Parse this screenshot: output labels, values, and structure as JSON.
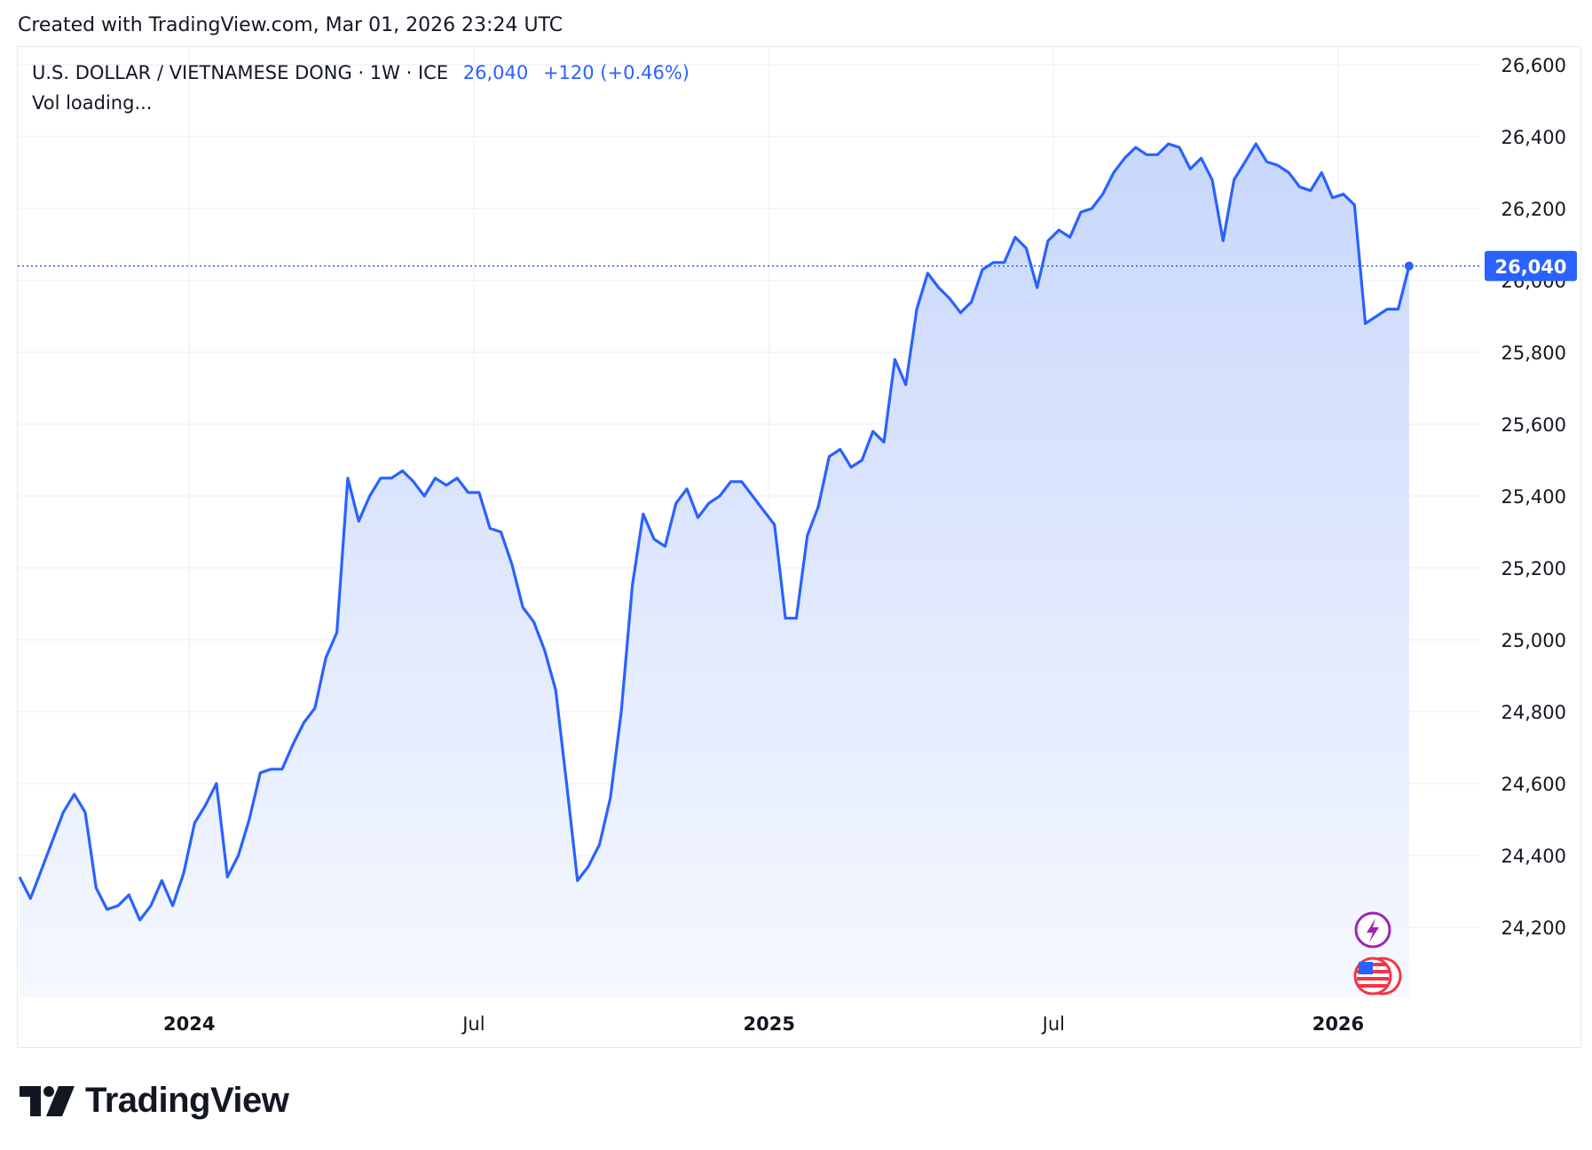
{
  "header": {
    "created_text": "Created with TradingView.com, Mar 01, 2026 23:24 UTC"
  },
  "legend": {
    "symbol": "U.S. DOLLAR / VIETNAMESE DONG · 1W · ICE",
    "price": "26,040",
    "change": "+120 (+0.46%)",
    "volume": "Vol loading..."
  },
  "brand": {
    "name": "TradingView"
  },
  "colors": {
    "line": "#2962ff",
    "fill_top": "#c9d7fb",
    "fill_bottom": "#f5f8ff",
    "grid": "#f0f3fa",
    "text": "#131722"
  },
  "icons": [
    "lightning-icon",
    "us-flag-icon"
  ],
  "chart_data": {
    "type": "area",
    "title": "U.S. DOLLAR / VIETNAMESE DONG · 1W · ICE",
    "xlabel": "",
    "ylabel": "",
    "ylim": [
      24000,
      26620
    ],
    "y_ticks": [
      24200,
      24400,
      24600,
      24800,
      25000,
      25200,
      25400,
      25600,
      25800,
      26000,
      26200,
      26400,
      26600
    ],
    "y_tick_labels": [
      "24,200",
      "24,400",
      "24,600",
      "24,800",
      "25,000",
      "25,200",
      "25,400",
      "25,600",
      "25,800",
      "26,000",
      "26,200",
      "26,400",
      "26,600"
    ],
    "x_ticks": [
      {
        "label": "2024",
        "index": 16,
        "bold": true
      },
      {
        "label": "Jul",
        "index": 42,
        "bold": false
      },
      {
        "label": "2025",
        "index": 69,
        "bold": true
      },
      {
        "label": "Jul",
        "index": 95,
        "bold": false
      },
      {
        "label": "2026",
        "index": 121,
        "bold": true
      }
    ],
    "last_value": 26040,
    "last_value_label": "26,040",
    "grid": true,
    "series": [
      {
        "values": [
          24340,
          24280,
          24360,
          24440,
          24520,
          24570,
          24520,
          24310,
          24250,
          24260,
          24290,
          24220,
          24260,
          24330,
          24260,
          24350,
          24490,
          24540,
          24600,
          24340,
          24400,
          24500,
          24630,
          24640,
          24640,
          24710,
          24770,
          24810,
          24950,
          25020,
          25450,
          25330,
          25400,
          25450,
          25450,
          25470,
          25440,
          25400,
          25450,
          25430,
          25450,
          25410,
          25410,
          25310,
          25300,
          25210,
          25090,
          25050,
          24970,
          24860,
          24600,
          24330,
          24370,
          24430,
          24560,
          24800,
          25150,
          25350,
          25280,
          25260,
          25380,
          25420,
          25340,
          25380,
          25400,
          25440,
          25440,
          25400,
          25360,
          25320,
          25060,
          25060,
          25290,
          25370,
          25510,
          25530,
          25480,
          25500,
          25580,
          25550,
          25780,
          25710,
          25920,
          26020,
          25980,
          25950,
          25910,
          25940,
          26030,
          26050,
          26050,
          26120,
          26090,
          25980,
          26110,
          26140,
          26120,
          26190,
          26200,
          26240,
          26300,
          26340,
          26370,
          26350,
          26350,
          26380,
          26370,
          26310,
          26340,
          26280,
          26110,
          26280,
          26330,
          26380,
          26330,
          26320,
          26300,
          26260,
          26250,
          26300,
          26230,
          26240,
          26210,
          25880,
          25900,
          25920,
          25920,
          26040
        ]
      }
    ]
  }
}
